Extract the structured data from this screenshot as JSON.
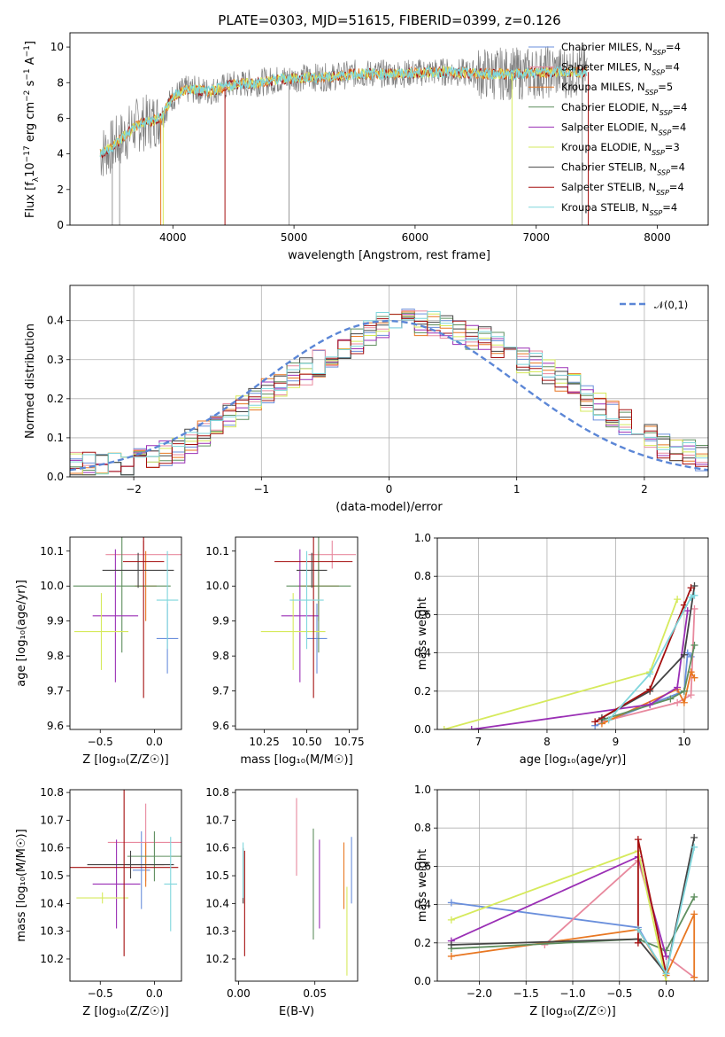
{
  "title": "PLATE=0303, MJD=51615, FIBERID=0399, z=0.126",
  "colors": {
    "Chabrier MILES": "#6a8fdc",
    "Salpeter MILES": "#e8899e",
    "Kroupa MILES": "#e87722",
    "Chabrier ELODIE": "#5f8f5f",
    "Salpeter ELODIE": "#9a2fb5",
    "Kroupa ELODIE": "#d6ea5c",
    "Chabrier STELIB": "#444444",
    "Salpeter STELIB": "#a51010",
    "Kroupa STELIB": "#7fd6dc"
  },
  "chart_data": [
    {
      "type": "line",
      "title": "PLATE=0303, MJD=51615, FIBERID=0399, z=0.126",
      "xlabel": "wavelength [Angstrom, rest frame]",
      "ylabel": "Flux [f",
      "ylabel_parts": [
        "Flux [f",
        "λ",
        "10",
        "−17",
        " erg cm",
        "−2",
        " s",
        "−1",
        " A",
        "−1",
        "]"
      ],
      "xlim": [
        3150,
        8420
      ],
      "ylim": [
        0,
        10.8
      ],
      "xticks": [
        4000,
        5000,
        6000,
        7000,
        8000
      ],
      "yticks": [
        0,
        2,
        4,
        6,
        8,
        10
      ],
      "legend_position": "top-right",
      "legend": [
        {
          "name": "Chabrier MILES",
          "nssp": "4"
        },
        {
          "name": "Salpeter MILES",
          "nssp": "4"
        },
        {
          "name": "Kroupa MILES",
          "nssp": "5"
        },
        {
          "name": "Chabrier ELODIE",
          "nssp": "4"
        },
        {
          "name": "Salpeter ELODIE",
          "nssp": "4"
        },
        {
          "name": "Kroupa ELODIE",
          "nssp": "3"
        },
        {
          "name": "Chabrier STELIB",
          "nssp": "4"
        },
        {
          "name": "Salpeter STELIB",
          "nssp": "4"
        },
        {
          "name": "Kroupa STELIB",
          "nssp": "4"
        }
      ],
      "spectrum_x": [
        3400,
        3500,
        3600,
        3700,
        3800,
        3900,
        4000,
        4100,
        4200,
        4300,
        4500,
        4700,
        4900,
        5100,
        5300,
        5500,
        5700,
        5900,
        6100,
        6300,
        6500,
        6700,
        6900,
        7100,
        7300,
        7400
      ],
      "spectrum_y": [
        4.0,
        4.4,
        5.0,
        5.6,
        5.8,
        6.0,
        7.2,
        7.6,
        7.6,
        7.5,
        7.9,
        8.0,
        8.2,
        8.3,
        8.3,
        8.5,
        8.5,
        8.5,
        8.6,
        8.6,
        8.5,
        8.5,
        8.5,
        8.6,
        8.6,
        8.6
      ]
    },
    {
      "type": "line",
      "xlabel": "(data-model)/error",
      "ylabel": "Normed distribution",
      "xlim": [
        -2.5,
        2.5
      ],
      "ylim": [
        0,
        0.49
      ],
      "xticks": [
        -2,
        -1,
        0,
        1,
        2
      ],
      "yticks": [
        0.0,
        0.1,
        0.2,
        0.3,
        0.4
      ],
      "grid": true,
      "legend_position": "top-right",
      "legend": [
        {
          "name": "𝒩(0,1)",
          "color": "#5b86d6",
          "style": "dashed"
        }
      ],
      "bin_width": 0.1,
      "hist_base": [
        0.03,
        0.03,
        0.03,
        0.035,
        0.03,
        0.045,
        0.055,
        0.06,
        0.07,
        0.09,
        0.11,
        0.13,
        0.16,
        0.18,
        0.2,
        0.22,
        0.24,
        0.26,
        0.27,
        0.29,
        0.31,
        0.33,
        0.35,
        0.37,
        0.39,
        0.41,
        0.4,
        0.39,
        0.39,
        0.38,
        0.37,
        0.36,
        0.35,
        0.34,
        0.32,
        0.3,
        0.29,
        0.27,
        0.25,
        0.23,
        0.2,
        0.18,
        0.16,
        0.14,
        0.12,
        0.1,
        0.08,
        0.07,
        0.06,
        0.05
      ]
    },
    {
      "type": "scatter",
      "xlabel": "Z [log₁₀(Z/Z☉)]",
      "ylabel": "age  [log₁₀(age/yr)]",
      "xlim": [
        -0.78,
        0.25
      ],
      "ylim": [
        9.59,
        10.14
      ],
      "xticks": [
        -0.5,
        0.0
      ],
      "yticks": [
        9.6,
        9.7,
        9.8,
        9.9,
        10.0,
        10.1
      ],
      "points": [
        {
          "model": "Chabrier MILES",
          "x": 0.12,
          "xerr": 0.1,
          "y": 9.85,
          "yerr": 0.1
        },
        {
          "model": "Salpeter MILES",
          "x": -0.1,
          "xerr": 0.35,
          "y": 10.09,
          "yerr": 0.04
        },
        {
          "model": "Kroupa MILES",
          "x": -0.08,
          "xerr": 0.1,
          "y": 10.0,
          "yerr": 0.1
        },
        {
          "model": "Chabrier ELODIE",
          "x": -0.3,
          "xerr": 0.45,
          "y": 10.0,
          "yerr": 0.19
        },
        {
          "model": "Salpeter ELODIE",
          "x": -0.36,
          "xerr": 0.21,
          "y": 9.915,
          "yerr": 0.19
        },
        {
          "model": "Kroupa ELODIE",
          "x": -0.49,
          "xerr": 0.25,
          "y": 9.87,
          "yerr": 0.11
        },
        {
          "model": "Chabrier STELIB",
          "x": -0.15,
          "xerr": 0.33,
          "y": 10.045,
          "yerr": 0.05
        },
        {
          "model": "Salpeter STELIB",
          "x": -0.1,
          "xerr": 0.19,
          "y": 10.07,
          "yerr": 0.39
        },
        {
          "model": "Kroupa STELIB",
          "x": 0.12,
          "xerr": 0.1,
          "y": 9.96,
          "yerr": 0.14
        }
      ]
    },
    {
      "type": "scatter",
      "xlabel": "mass [log₁₀(M/M☉)]",
      "xlim": [
        10.08,
        10.8
      ],
      "ylim": [
        9.59,
        10.14
      ],
      "xticks": [
        10.25,
        10.5,
        10.75
      ],
      "yticks": [
        9.6,
        9.7,
        9.8,
        9.9,
        10.0,
        10.1
      ],
      "points": [
        {
          "model": "Chabrier MILES",
          "x": 10.56,
          "xerr": 0.06,
          "y": 9.85,
          "yerr": 0.1
        },
        {
          "model": "Salpeter MILES",
          "x": 10.65,
          "xerr": 0.14,
          "y": 10.09,
          "yerr": 0.04
        },
        {
          "model": "Kroupa MILES",
          "x": 10.57,
          "xerr": 0.12,
          "y": 10.0,
          "yerr": 0.1
        },
        {
          "model": "Chabrier ELODIE",
          "x": 10.57,
          "xerr": 0.19,
          "y": 10.0,
          "yerr": 0.19
        },
        {
          "model": "Salpeter ELODIE",
          "x": 10.46,
          "xerr": 0.11,
          "y": 9.915,
          "yerr": 0.19
        },
        {
          "model": "Kroupa ELODIE",
          "x": 10.42,
          "xerr": 0.19,
          "y": 9.87,
          "yerr": 0.11
        },
        {
          "model": "Chabrier STELIB",
          "x": 10.53,
          "xerr": 0.09,
          "y": 10.045,
          "yerr": 0.05
        },
        {
          "model": "Salpeter STELIB",
          "x": 10.54,
          "xerr": 0.23,
          "y": 10.07,
          "yerr": 0.39
        },
        {
          "model": "Kroupa STELIB",
          "x": 10.5,
          "xerr": 0.1,
          "y": 9.96,
          "yerr": 0.14
        }
      ]
    },
    {
      "type": "line",
      "xlabel": "age  [log₁₀(age/yr)]",
      "ylabel": "mass weight",
      "xlim": [
        6.4,
        10.35
      ],
      "ylim": [
        0,
        1.0
      ],
      "xticks": [
        7,
        8,
        9,
        10
      ],
      "yticks": [
        0.0,
        0.2,
        0.4,
        0.6,
        0.8,
        1.0
      ],
      "grid": true,
      "series": [
        {
          "model": "Chabrier MILES",
          "x": [
            8.7,
            10.0,
            10.05,
            10.1
          ],
          "y": [
            0.02,
            0.2,
            0.4,
            0.38
          ]
        },
        {
          "model": "Salpeter MILES",
          "x": [
            8.8,
            9.9,
            10.1,
            10.15
          ],
          "y": [
            0.04,
            0.14,
            0.18,
            0.63
          ]
        },
        {
          "model": "Kroupa MILES",
          "x": [
            8.8,
            9.9,
            10.0,
            10.1,
            10.15
          ],
          "y": [
            0.03,
            0.21,
            0.14,
            0.3,
            0.27
          ]
        },
        {
          "model": "Chabrier ELODIE",
          "x": [
            8.8,
            9.8,
            10.0,
            10.15
          ],
          "y": [
            0.05,
            0.16,
            0.2,
            0.44
          ]
        },
        {
          "model": "Salpeter ELODIE",
          "x": [
            6.9,
            9.5,
            9.9,
            10.05
          ],
          "y": [
            0.0,
            0.13,
            0.22,
            0.62
          ]
        },
        {
          "model": "Kroupa ELODIE",
          "x": [
            6.5,
            9.5,
            9.9
          ],
          "y": [
            0.0,
            0.3,
            0.68
          ]
        },
        {
          "model": "Chabrier STELIB",
          "x": [
            8.8,
            9.5,
            10.0,
            10.15
          ],
          "y": [
            0.06,
            0.2,
            0.39,
            0.75
          ]
        },
        {
          "model": "Salpeter STELIB",
          "x": [
            8.7,
            9.5,
            10.0,
            10.1
          ],
          "y": [
            0.04,
            0.21,
            0.65,
            0.74
          ]
        },
        {
          "model": "Kroupa STELIB",
          "x": [
            8.9,
            9.5,
            10.1,
            10.15
          ],
          "y": [
            0.05,
            0.29,
            0.69,
            0.7
          ]
        }
      ]
    },
    {
      "type": "scatter",
      "ylabel": "mass [log₁₀(M/M☉)]",
      "xlabel": "Z [log₁₀(Z/Z☉)]",
      "xlim": [
        -0.78,
        0.25
      ],
      "ylim": [
        10.12,
        10.81
      ],
      "xticks": [
        -0.5,
        0.0
      ],
      "yticks": [
        10.2,
        10.3,
        10.4,
        10.5,
        10.6,
        10.7,
        10.8
      ],
      "points": [
        {
          "model": "Chabrier MILES",
          "x": -0.12,
          "xerr": 0.08,
          "y": 10.52,
          "yerr": 0.14
        },
        {
          "model": "Salpeter MILES",
          "x": -0.08,
          "xerr": 0.35,
          "y": 10.62,
          "yerr": 0.14
        },
        {
          "model": "Kroupa MILES",
          "x": -0.08,
          "xerr": 0.17,
          "y": 10.54,
          "yerr": 0.08
        },
        {
          "model": "Chabrier ELODIE",
          "x": 0.0,
          "xerr": 0.25,
          "y": 10.57,
          "yerr": 0.09
        },
        {
          "model": "Salpeter ELODIE",
          "x": -0.35,
          "xerr": 0.22,
          "y": 10.47,
          "yerr": 0.16
        },
        {
          "model": "Kroupa ELODIE",
          "x": -0.48,
          "xerr": 0.24,
          "y": 10.42,
          "yerr": 0.02
        },
        {
          "model": "Chabrier STELIB",
          "x": -0.22,
          "xerr": 0.4,
          "y": 10.54,
          "yerr": 0.05
        },
        {
          "model": "Salpeter STELIB",
          "x": -0.28,
          "xerr": 0.5,
          "y": 10.53,
          "yerr": 0.32
        },
        {
          "model": "Kroupa STELIB",
          "x": 0.15,
          "xerr": 0.06,
          "y": 10.47,
          "yerr": 0.17
        }
      ]
    },
    {
      "type": "scatter",
      "xlabel": "E(B-V)",
      "xlim": [
        -0.002,
        0.078
      ],
      "ylim": [
        10.12,
        10.81
      ],
      "xticks": [
        0.0,
        0.05
      ],
      "yticks": [
        10.2,
        10.3,
        10.4,
        10.5,
        10.6,
        10.7,
        10.8
      ],
      "points": [
        {
          "model": "Chabrier MILES",
          "x": 0.074,
          "y": 10.52,
          "yerr": 0.12
        },
        {
          "model": "Salpeter MILES",
          "x": 0.038,
          "y": 10.64,
          "yerr": 0.14
        },
        {
          "model": "Kroupa MILES",
          "x": 0.069,
          "y": 10.5,
          "yerr": 0.12
        },
        {
          "model": "Chabrier ELODIE",
          "x": 0.049,
          "y": 10.47,
          "yerr": 0.2
        },
        {
          "model": "Salpeter ELODIE",
          "x": 0.053,
          "y": 10.47,
          "yerr": 0.16
        },
        {
          "model": "Kroupa ELODIE",
          "x": 0.071,
          "y": 10.3,
          "yerr": 0.16
        },
        {
          "model": "Chabrier STELIB",
          "x": 0.003,
          "y": 10.5,
          "yerr": 0.1
        },
        {
          "model": "Salpeter STELIB",
          "x": 0.004,
          "y": 10.4,
          "yerr": 0.19
        },
        {
          "model": "Kroupa STELIB",
          "x": 0.003,
          "y": 10.52,
          "yerr": 0.1
        }
      ]
    },
    {
      "type": "line",
      "xlabel": "Z [log₁₀(Z/Z☉)]",
      "ylabel": "mass weight",
      "xlim": [
        -2.45,
        0.45
      ],
      "ylim": [
        0,
        1.0
      ],
      "xticks": [
        -2.0,
        -1.5,
        -1.0,
        -0.5,
        0.0
      ],
      "yticks": [
        0.0,
        0.2,
        0.4,
        0.6,
        0.8,
        1.0
      ],
      "grid": true,
      "series": [
        {
          "model": "Chabrier MILES",
          "x": [
            -2.3,
            -0.3,
            0.0
          ],
          "y": [
            0.41,
            0.28,
            0.03
          ]
        },
        {
          "model": "Salpeter MILES",
          "x": [
            -1.3,
            -0.3,
            0.0,
            0.3
          ],
          "y": [
            0.19,
            0.63,
            0.13,
            0.02
          ]
        },
        {
          "model": "Kroupa MILES",
          "x": [
            -2.3,
            -0.3,
            0.0,
            0.3,
            0.3
          ],
          "y": [
            0.13,
            0.27,
            0.03,
            0.35,
            0.02
          ]
        },
        {
          "model": "Chabrier ELODIE",
          "x": [
            -2.3,
            -0.3,
            0.0,
            0.3
          ],
          "y": [
            0.17,
            0.22,
            0.16,
            0.44
          ]
        },
        {
          "model": "Salpeter ELODIE",
          "x": [
            -2.3,
            -0.3,
            0.0
          ],
          "y": [
            0.21,
            0.65,
            0.13
          ]
        },
        {
          "model": "Kroupa ELODIE",
          "x": [
            -2.3,
            -0.3,
            0.0
          ],
          "y": [
            0.32,
            0.68,
            0.0
          ]
        },
        {
          "model": "Chabrier STELIB",
          "x": [
            -2.3,
            -0.3,
            0.0,
            0.3
          ],
          "y": [
            0.19,
            0.22,
            0.04,
            0.75
          ]
        },
        {
          "model": "Salpeter STELIB",
          "x": [
            -0.3,
            -0.3,
            0.0
          ],
          "y": [
            0.2,
            0.74,
            0.04
          ]
        },
        {
          "model": "Kroupa STELIB",
          "x": [
            -0.3,
            0.0,
            0.3
          ],
          "y": [
            0.27,
            0.04,
            0.7
          ]
        }
      ]
    }
  ]
}
